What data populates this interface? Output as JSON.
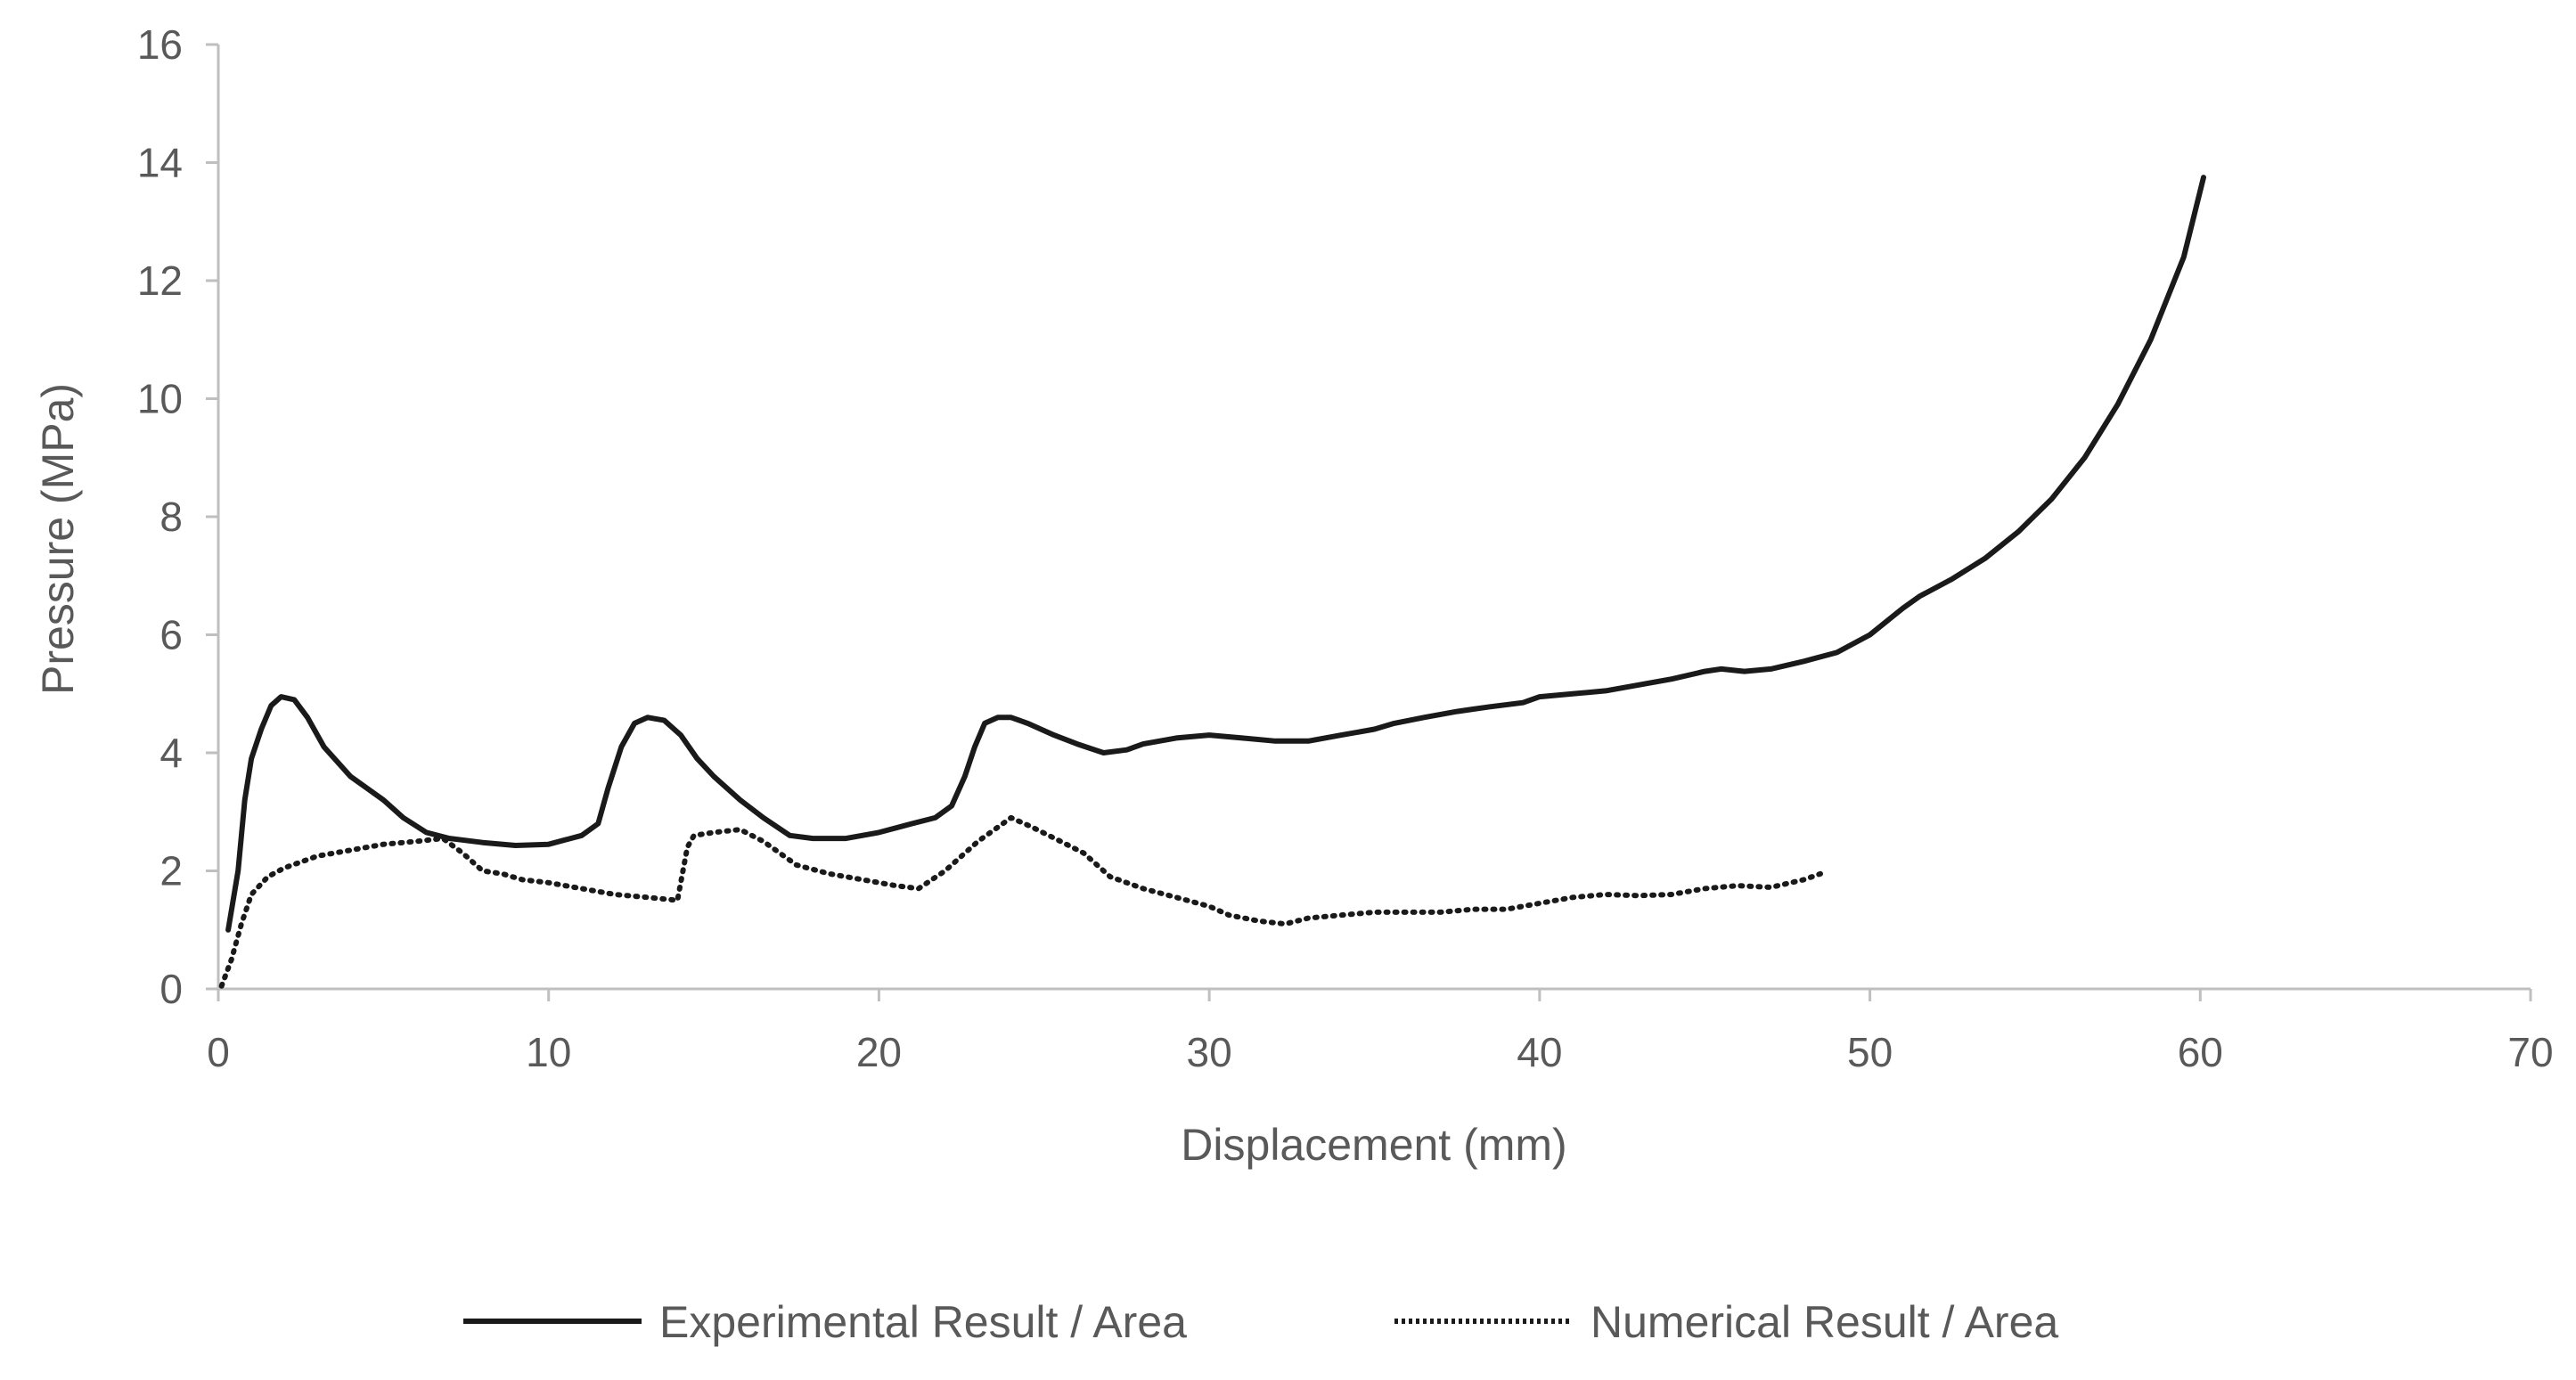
{
  "chart_data": {
    "type": "line",
    "title": "",
    "xlabel": "Displacement (mm)",
    "ylabel": "Pressure (MPa)",
    "xlim": [
      0,
      70
    ],
    "ylim": [
      0,
      16
    ],
    "xticks": [
      0,
      10,
      20,
      30,
      40,
      50,
      60,
      70
    ],
    "yticks": [
      0,
      2,
      4,
      6,
      8,
      10,
      12,
      14,
      16
    ],
    "grid": false,
    "legend_position": "bottom",
    "colors": {
      "axis": "#bfbfbf",
      "text": "#595959",
      "series": "#1a1a1a"
    },
    "series": [
      {
        "name": "Experimental Result / Area",
        "style": "solid",
        "points": [
          [
            0.3,
            1.0
          ],
          [
            0.6,
            2.0
          ],
          [
            0.8,
            3.2
          ],
          [
            1.0,
            3.9
          ],
          [
            1.3,
            4.4
          ],
          [
            1.6,
            4.8
          ],
          [
            1.9,
            4.95
          ],
          [
            2.3,
            4.9
          ],
          [
            2.7,
            4.6
          ],
          [
            3.2,
            4.1
          ],
          [
            4.0,
            3.6
          ],
          [
            5.0,
            3.2
          ],
          [
            5.6,
            2.9
          ],
          [
            6.3,
            2.65
          ],
          [
            7.0,
            2.55
          ],
          [
            8.0,
            2.48
          ],
          [
            9.0,
            2.43
          ],
          [
            10.0,
            2.45
          ],
          [
            11.0,
            2.6
          ],
          [
            11.5,
            2.8
          ],
          [
            11.8,
            3.4
          ],
          [
            12.2,
            4.1
          ],
          [
            12.6,
            4.5
          ],
          [
            13.0,
            4.6
          ],
          [
            13.5,
            4.55
          ],
          [
            14.0,
            4.3
          ],
          [
            14.5,
            3.9
          ],
          [
            15.0,
            3.6
          ],
          [
            15.8,
            3.2
          ],
          [
            16.5,
            2.9
          ],
          [
            17.3,
            2.6
          ],
          [
            18.0,
            2.55
          ],
          [
            19.0,
            2.55
          ],
          [
            20.0,
            2.65
          ],
          [
            21.0,
            2.8
          ],
          [
            21.7,
            2.9
          ],
          [
            22.2,
            3.1
          ],
          [
            22.6,
            3.6
          ],
          [
            22.9,
            4.1
          ],
          [
            23.2,
            4.5
          ],
          [
            23.6,
            4.6
          ],
          [
            24.0,
            4.6
          ],
          [
            24.5,
            4.5
          ],
          [
            25.3,
            4.3
          ],
          [
            26.0,
            4.15
          ],
          [
            26.8,
            4.0
          ],
          [
            27.5,
            4.05
          ],
          [
            28.0,
            4.15
          ],
          [
            29.0,
            4.25
          ],
          [
            30.0,
            4.3
          ],
          [
            31.0,
            4.25
          ],
          [
            32.0,
            4.2
          ],
          [
            33.0,
            4.2
          ],
          [
            34.0,
            4.3
          ],
          [
            35.0,
            4.4
          ],
          [
            35.6,
            4.5
          ],
          [
            36.5,
            4.6
          ],
          [
            37.5,
            4.7
          ],
          [
            38.5,
            4.78
          ],
          [
            39.5,
            4.85
          ],
          [
            40.0,
            4.95
          ],
          [
            41.0,
            5.0
          ],
          [
            42.0,
            5.05
          ],
          [
            43.0,
            5.15
          ],
          [
            44.0,
            5.25
          ],
          [
            45.0,
            5.38
          ],
          [
            45.5,
            5.42
          ],
          [
            46.2,
            5.38
          ],
          [
            47.0,
            5.42
          ],
          [
            48.0,
            5.55
          ],
          [
            49.0,
            5.7
          ],
          [
            50.0,
            6.0
          ],
          [
            51.0,
            6.45
          ],
          [
            51.5,
            6.65
          ],
          [
            52.5,
            6.95
          ],
          [
            53.5,
            7.3
          ],
          [
            54.5,
            7.75
          ],
          [
            55.5,
            8.3
          ],
          [
            56.5,
            9.0
          ],
          [
            57.5,
            9.9
          ],
          [
            58.5,
            11.0
          ],
          [
            59.5,
            12.4
          ],
          [
            60.1,
            13.75
          ]
        ]
      },
      {
        "name": "Numerical Result / Area",
        "style": "dotted",
        "points": [
          [
            0.1,
            0.05
          ],
          [
            0.4,
            0.5
          ],
          [
            0.7,
            1.1
          ],
          [
            1.0,
            1.6
          ],
          [
            1.5,
            1.9
          ],
          [
            2.0,
            2.05
          ],
          [
            3.0,
            2.25
          ],
          [
            4.0,
            2.35
          ],
          [
            5.0,
            2.45
          ],
          [
            6.0,
            2.5
          ],
          [
            6.8,
            2.55
          ],
          [
            7.4,
            2.3
          ],
          [
            8.0,
            2.0
          ],
          [
            8.6,
            1.95
          ],
          [
            9.2,
            1.85
          ],
          [
            10.0,
            1.8
          ],
          [
            11.0,
            1.7
          ],
          [
            12.0,
            1.6
          ],
          [
            13.0,
            1.55
          ],
          [
            13.9,
            1.5
          ],
          [
            14.2,
            2.4
          ],
          [
            14.4,
            2.6
          ],
          [
            15.0,
            2.65
          ],
          [
            15.8,
            2.7
          ],
          [
            16.5,
            2.5
          ],
          [
            17.5,
            2.1
          ],
          [
            18.5,
            1.95
          ],
          [
            19.5,
            1.85
          ],
          [
            20.5,
            1.75
          ],
          [
            21.2,
            1.7
          ],
          [
            22.0,
            2.0
          ],
          [
            23.0,
            2.5
          ],
          [
            24.0,
            2.9
          ],
          [
            24.6,
            2.75
          ],
          [
            25.5,
            2.5
          ],
          [
            26.2,
            2.3
          ],
          [
            27.0,
            1.9
          ],
          [
            28.0,
            1.7
          ],
          [
            29.0,
            1.55
          ],
          [
            30.0,
            1.4
          ],
          [
            30.6,
            1.25
          ],
          [
            31.5,
            1.15
          ],
          [
            32.3,
            1.1
          ],
          [
            33.0,
            1.2
          ],
          [
            34.0,
            1.25
          ],
          [
            35.0,
            1.3
          ],
          [
            36.0,
            1.3
          ],
          [
            37.0,
            1.3
          ],
          [
            38.0,
            1.35
          ],
          [
            39.0,
            1.35
          ],
          [
            40.0,
            1.45
          ],
          [
            41.0,
            1.55
          ],
          [
            42.0,
            1.6
          ],
          [
            43.0,
            1.58
          ],
          [
            44.0,
            1.6
          ],
          [
            45.0,
            1.7
          ],
          [
            46.0,
            1.75
          ],
          [
            47.0,
            1.72
          ],
          [
            48.0,
            1.85
          ],
          [
            48.5,
            1.95
          ]
        ]
      }
    ]
  }
}
